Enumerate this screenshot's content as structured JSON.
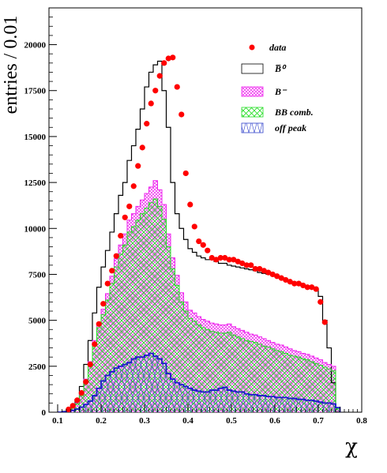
{
  "chart_data": {
    "type": "histogram",
    "xlabel": "χ",
    "ylabel": "entries / 0.01",
    "xlim": [
      0.08,
      0.8
    ],
    "ylim": [
      0,
      22000
    ],
    "x_ticks": [
      "0.1",
      "0.2",
      "0.3",
      "0.4",
      "0.5",
      "0.6",
      "0.7",
      "0.8"
    ],
    "x_tick_values": [
      0.1,
      0.2,
      0.3,
      0.4,
      0.5,
      0.6,
      0.7,
      0.8
    ],
    "y_ticks": [
      "0",
      "2500",
      "5000",
      "7500",
      "10000",
      "12500",
      "15000",
      "17500",
      "20000"
    ],
    "y_tick_values": [
      0,
      2500,
      5000,
      7500,
      10000,
      12500,
      15000,
      17500,
      20000
    ],
    "bin_width": 0.01,
    "bin_start": 0.1,
    "legend": {
      "position": "top-right",
      "entries": [
        {
          "key": "data",
          "label": "data",
          "style": "marker",
          "color": "#ff0000"
        },
        {
          "key": "b0bar",
          "label": "B̅⁰",
          "style": "box",
          "color": "#000000"
        },
        {
          "key": "bminus",
          "label": "B⁻",
          "style": "hatch",
          "color": "#ff00ff"
        },
        {
          "key": "bbcomb",
          "label": "BB comb.",
          "style": "hatch",
          "color": "#00dd00"
        },
        {
          "key": "offpeak",
          "label": "off peak",
          "style": "hatch",
          "color": "#0000cc"
        }
      ]
    },
    "series": [
      {
        "key": "offpeak",
        "name": "off peak",
        "color": "#1a1acc",
        "values": [
          0,
          20,
          50,
          100,
          170,
          280,
          420,
          600,
          900,
          1300,
          1700,
          2000,
          2200,
          2400,
          2500,
          2600,
          2700,
          2900,
          3000,
          3000,
          3100,
          3200,
          3050,
          2900,
          2650,
          2100,
          1800,
          1600,
          1500,
          1400,
          1300,
          1200,
          1150,
          1100,
          1100,
          1200,
          1200,
          1300,
          1350,
          1200,
          1150,
          1100,
          1100,
          1000,
          950,
          950,
          900,
          900,
          850,
          850,
          800,
          800,
          800,
          750,
          750,
          700,
          700,
          650,
          650,
          600,
          550,
          500,
          500,
          450,
          250
        ]
      },
      {
        "key": "bbcomb",
        "name": "BB comb.",
        "color": "#22dd22",
        "values": [
          0,
          40,
          100,
          220,
          450,
          900,
          1700,
          2600,
          3700,
          4600,
          5300,
          6100,
          7000,
          7900,
          8600,
          9100,
          9800,
          10100,
          10450,
          10800,
          11100,
          11400,
          11600,
          11200,
          10500,
          9000,
          7800,
          6900,
          6000,
          5500,
          5100,
          4950,
          4750,
          4600,
          4500,
          4400,
          4350,
          4300,
          4300,
          4350,
          4200,
          4100,
          4000,
          3900,
          3850,
          3800,
          3700,
          3600,
          3550,
          3450,
          3350,
          3300,
          3200,
          3100,
          3050,
          3000,
          2900,
          2850,
          2750,
          2650,
          2550,
          2450,
          2350,
          2250,
          200
        ]
      },
      {
        "key": "bminus",
        "name": "B⁻",
        "color": "#ee22ee",
        "values": [
          0,
          40,
          110,
          240,
          480,
          960,
          1800,
          2750,
          3900,
          4850,
          5600,
          6450,
          7400,
          8350,
          9100,
          9700,
          10450,
          10800,
          11200,
          11550,
          11900,
          12250,
          12600,
          12100,
          11300,
          9700,
          8400,
          7450,
          6500,
          6000,
          5550,
          5400,
          5200,
          5050,
          4950,
          4850,
          4800,
          4750,
          4750,
          4800,
          4650,
          4550,
          4450,
          4350,
          4250,
          4200,
          4100,
          4000,
          3900,
          3800,
          3700,
          3650,
          3550,
          3450,
          3350,
          3300,
          3200,
          3150,
          3050,
          2950,
          2850,
          2700,
          2600,
          2500,
          220
        ]
      },
      {
        "key": "b0bar",
        "name": "B̅⁰",
        "color": "#000000",
        "values": [
          0,
          50,
          150,
          350,
          700,
          1400,
          2600,
          3900,
          5400,
          6800,
          7900,
          8800,
          9800,
          10800,
          11800,
          12500,
          13700,
          14500,
          15400,
          16500,
          17700,
          18500,
          18900,
          19100,
          17500,
          15500,
          12500,
          10800,
          10000,
          9400,
          8900,
          8700,
          8500,
          8400,
          8300,
          8300,
          8200,
          8100,
          8100,
          8000,
          7950,
          7900,
          7850,
          7800,
          7750,
          7700,
          7600,
          7550,
          7500,
          7450,
          7350,
          7300,
          7200,
          7100,
          7000,
          7000,
          6900,
          6850,
          6750,
          6700,
          6300,
          5000,
          3500,
          1600,
          0
        ]
      },
      {
        "key": "data",
        "name": "data",
        "color": "#ff0000",
        "x": [
          0.125,
          0.135,
          0.145,
          0.155,
          0.165,
          0.175,
          0.185,
          0.195,
          0.205,
          0.215,
          0.225,
          0.235,
          0.245,
          0.255,
          0.265,
          0.275,
          0.285,
          0.295,
          0.305,
          0.315,
          0.325,
          0.335,
          0.345,
          0.355,
          0.365,
          0.375,
          0.385,
          0.395,
          0.405,
          0.415,
          0.425,
          0.435,
          0.445,
          0.455,
          0.465,
          0.475,
          0.485,
          0.495,
          0.505,
          0.515,
          0.525,
          0.535,
          0.545,
          0.555,
          0.565,
          0.575,
          0.585,
          0.595,
          0.605,
          0.615,
          0.625,
          0.635,
          0.645,
          0.655,
          0.665,
          0.675,
          0.685,
          0.695,
          0.705,
          0.715
        ],
        "values": [
          150,
          350,
          650,
          1050,
          1650,
          2600,
          3700,
          4800,
          5900,
          7000,
          7700,
          8500,
          9600,
          10600,
          11200,
          12300,
          13400,
          14400,
          15700,
          16800,
          17500,
          18300,
          19000,
          19250,
          19300,
          17700,
          16200,
          13000,
          11300,
          10100,
          9300,
          9100,
          8800,
          8400,
          8300,
          8400,
          8400,
          8300,
          8300,
          8200,
          8100,
          8000,
          8000,
          7800,
          7800,
          7700,
          7600,
          7500,
          7400,
          7300,
          7200,
          7100,
          7000,
          7000,
          6900,
          6800,
          6800,
          6700,
          6000,
          4900
        ]
      }
    ]
  }
}
